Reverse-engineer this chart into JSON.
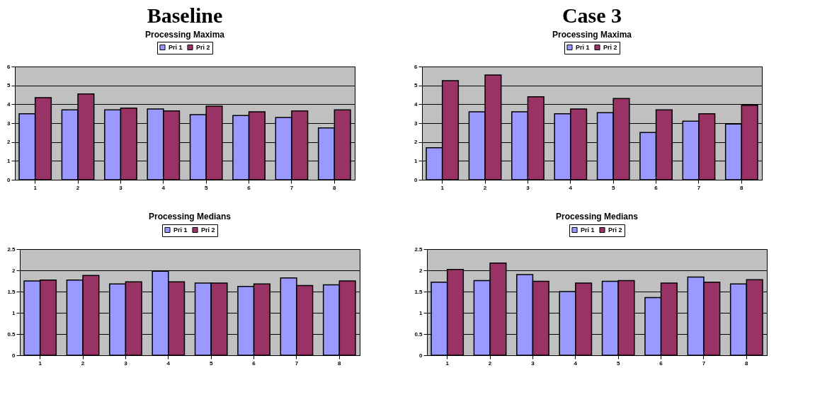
{
  "chart_data": [
    {
      "type": "bar",
      "title": "Baseline",
      "subtitle": "Processing Maxima",
      "categories": [
        "1",
        "2",
        "3",
        "4",
        "5",
        "6",
        "7",
        "8"
      ],
      "series": [
        {
          "name": "Pri 1",
          "color": "#9999ff",
          "values": [
            3.5,
            3.7,
            3.7,
            3.75,
            3.45,
            3.4,
            3.3,
            2.75
          ]
        },
        {
          "name": "Pri 2",
          "color": "#993366",
          "values": [
            4.35,
            4.55,
            3.8,
            3.65,
            3.9,
            3.6,
            3.65,
            3.7
          ]
        }
      ],
      "ylim": [
        0,
        6
      ],
      "yticks": [
        0,
        1,
        2,
        3,
        4,
        5,
        6
      ],
      "grid": "y",
      "legend": "top"
    },
    {
      "type": "bar",
      "title": "Case 3",
      "subtitle": "Processing Maxima",
      "categories": [
        "1",
        "2",
        "3",
        "4",
        "5",
        "6",
        "7",
        "8"
      ],
      "series": [
        {
          "name": "Pri 1",
          "color": "#9999ff",
          "values": [
            1.7,
            3.6,
            3.6,
            3.5,
            3.55,
            2.5,
            3.1,
            2.95
          ]
        },
        {
          "name": "Pri 2",
          "color": "#993366",
          "values": [
            5.25,
            5.55,
            4.4,
            3.75,
            4.3,
            3.7,
            3.5,
            3.95
          ]
        }
      ],
      "ylim": [
        0,
        6
      ],
      "yticks": [
        0,
        1,
        2,
        3,
        4,
        5,
        6
      ],
      "grid": "y",
      "legend": "top"
    },
    {
      "type": "bar",
      "title": "Processing Medians",
      "categories": [
        "1",
        "2",
        "3",
        "4",
        "5",
        "6",
        "7",
        "8"
      ],
      "series": [
        {
          "name": "Pri 1",
          "color": "#9999ff",
          "values": [
            1.75,
            1.77,
            1.68,
            1.98,
            1.7,
            1.62,
            1.82,
            1.66
          ]
        },
        {
          "name": "Pri 2",
          "color": "#993366",
          "values": [
            1.77,
            1.88,
            1.73,
            1.73,
            1.7,
            1.68,
            1.64,
            1.75
          ]
        }
      ],
      "ylim": [
        0,
        2.5
      ],
      "yticks": [
        0,
        0.5,
        1,
        1.5,
        2,
        2.5
      ],
      "grid": "y",
      "legend": "top"
    },
    {
      "type": "bar",
      "title": "Processing Medians",
      "categories": [
        "1",
        "2",
        "3",
        "4",
        "5",
        "6",
        "7",
        "8"
      ],
      "series": [
        {
          "name": "Pri 1",
          "color": "#9999ff",
          "values": [
            1.72,
            1.76,
            1.9,
            1.5,
            1.74,
            1.36,
            1.84,
            1.68
          ]
        },
        {
          "name": "Pri 2",
          "color": "#993366",
          "values": [
            2.02,
            2.17,
            1.74,
            1.7,
            1.76,
            1.7,
            1.72,
            1.78
          ]
        }
      ],
      "ylim": [
        0,
        2.5
      ],
      "yticks": [
        0,
        0.5,
        1,
        1.5,
        2,
        2.5
      ],
      "grid": "y",
      "legend": "top"
    }
  ]
}
